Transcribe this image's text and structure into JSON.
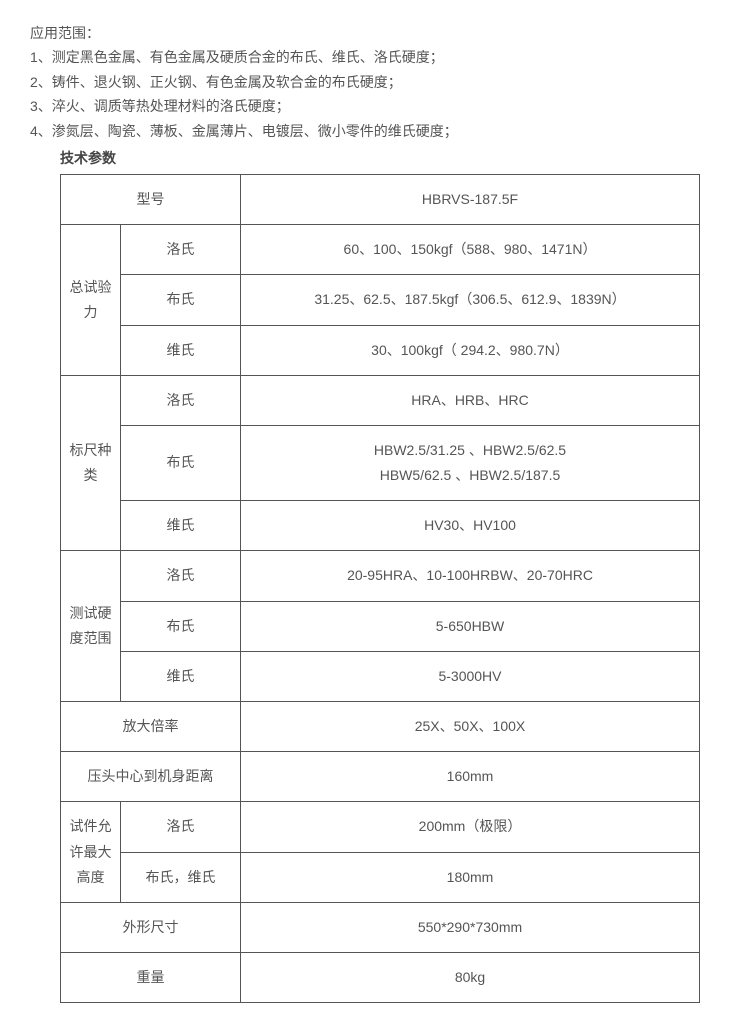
{
  "intro": {
    "title": "应用范围：",
    "lines": [
      "1、测定黑色金属、有色金属及硬质合金的布氏、维氏、洛氏硬度；",
      "2、铸件、退火钢、正火钢、有色金属及软合金的布氏硬度；",
      "3、淬火、调质等热处理材料的洛氏硬度；",
      "4、渗氮层、陶瓷、薄板、金属薄片、电镀层、微小零件的维氏硬度；"
    ],
    "subtitle": "技术参数"
  },
  "table": {
    "header": {
      "label": "型号",
      "value": "HBRVS-187.5F"
    },
    "groups": [
      {
        "label": "总试验力",
        "rows": [
          {
            "sub": "洛氏",
            "val": "60、100、150kgf（588、980、1471N）"
          },
          {
            "sub": "布氏",
            "val": "31.25、62.5、187.5kgf（306.5、612.9、1839N）"
          },
          {
            "sub": "维氏",
            "val": "30、100kgf（ 294.2、980.7N）"
          }
        ]
      },
      {
        "label": "标尺种类",
        "rows": [
          {
            "sub": "洛氏",
            "val": "HRA、HRB、HRC"
          },
          {
            "sub": "布氏",
            "val": "HBW2.5/31.25 、HBW2.5/62.5\nHBW5/62.5 、HBW2.5/187.5"
          },
          {
            "sub": "维氏",
            "val": "HV30、HV100"
          }
        ]
      },
      {
        "label": "测试硬度范围",
        "rows": [
          {
            "sub": "洛氏",
            "val": "20-95HRA、10-100HRBW、20-70HRC"
          },
          {
            "sub": "布氏",
            "val": "5-650HBW"
          },
          {
            "sub": "维氏",
            "val": "5-3000HV"
          }
        ]
      }
    ],
    "simple": [
      {
        "label": "放大倍率",
        "val": "25X、50X、100X"
      },
      {
        "label": "压头中心到机身距离",
        "val": "160mm"
      }
    ],
    "height": {
      "label": "试件允许最大高度",
      "rows": [
        {
          "sub": "洛氏",
          "val": "200mm（极限）"
        },
        {
          "sub": "布氏，维氏",
          "val": "180mm"
        }
      ]
    },
    "tail": [
      {
        "label": "外形尺寸",
        "val": "550*290*730mm"
      },
      {
        "label": "重量",
        "val": "80kg"
      }
    ]
  },
  "style": {
    "border_color": "#555555",
    "text_color": "#555555",
    "background": "#ffffff",
    "font_size_pt": 10.5
  }
}
